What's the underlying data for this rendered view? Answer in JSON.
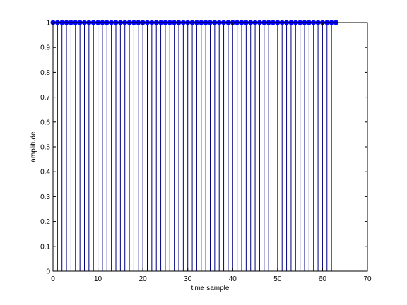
{
  "chart_data": {
    "type": "stem",
    "title": "",
    "xlabel": "time sample",
    "ylabel": "amplitude",
    "xlim": [
      0,
      70
    ],
    "ylim": [
      0,
      1
    ],
    "xticks": [
      0,
      10,
      20,
      30,
      40,
      50,
      60,
      70
    ],
    "yticks": [
      0,
      0.1,
      0.2,
      0.3,
      0.4,
      0.5,
      0.6,
      0.7,
      0.8,
      0.9,
      1
    ],
    "grid": false,
    "series": [
      {
        "x_start": 0,
        "x_end": 63,
        "value": 1,
        "color": "#0000ff",
        "stem_color": "#000080",
        "marker": "filled-circle"
      }
    ]
  }
}
